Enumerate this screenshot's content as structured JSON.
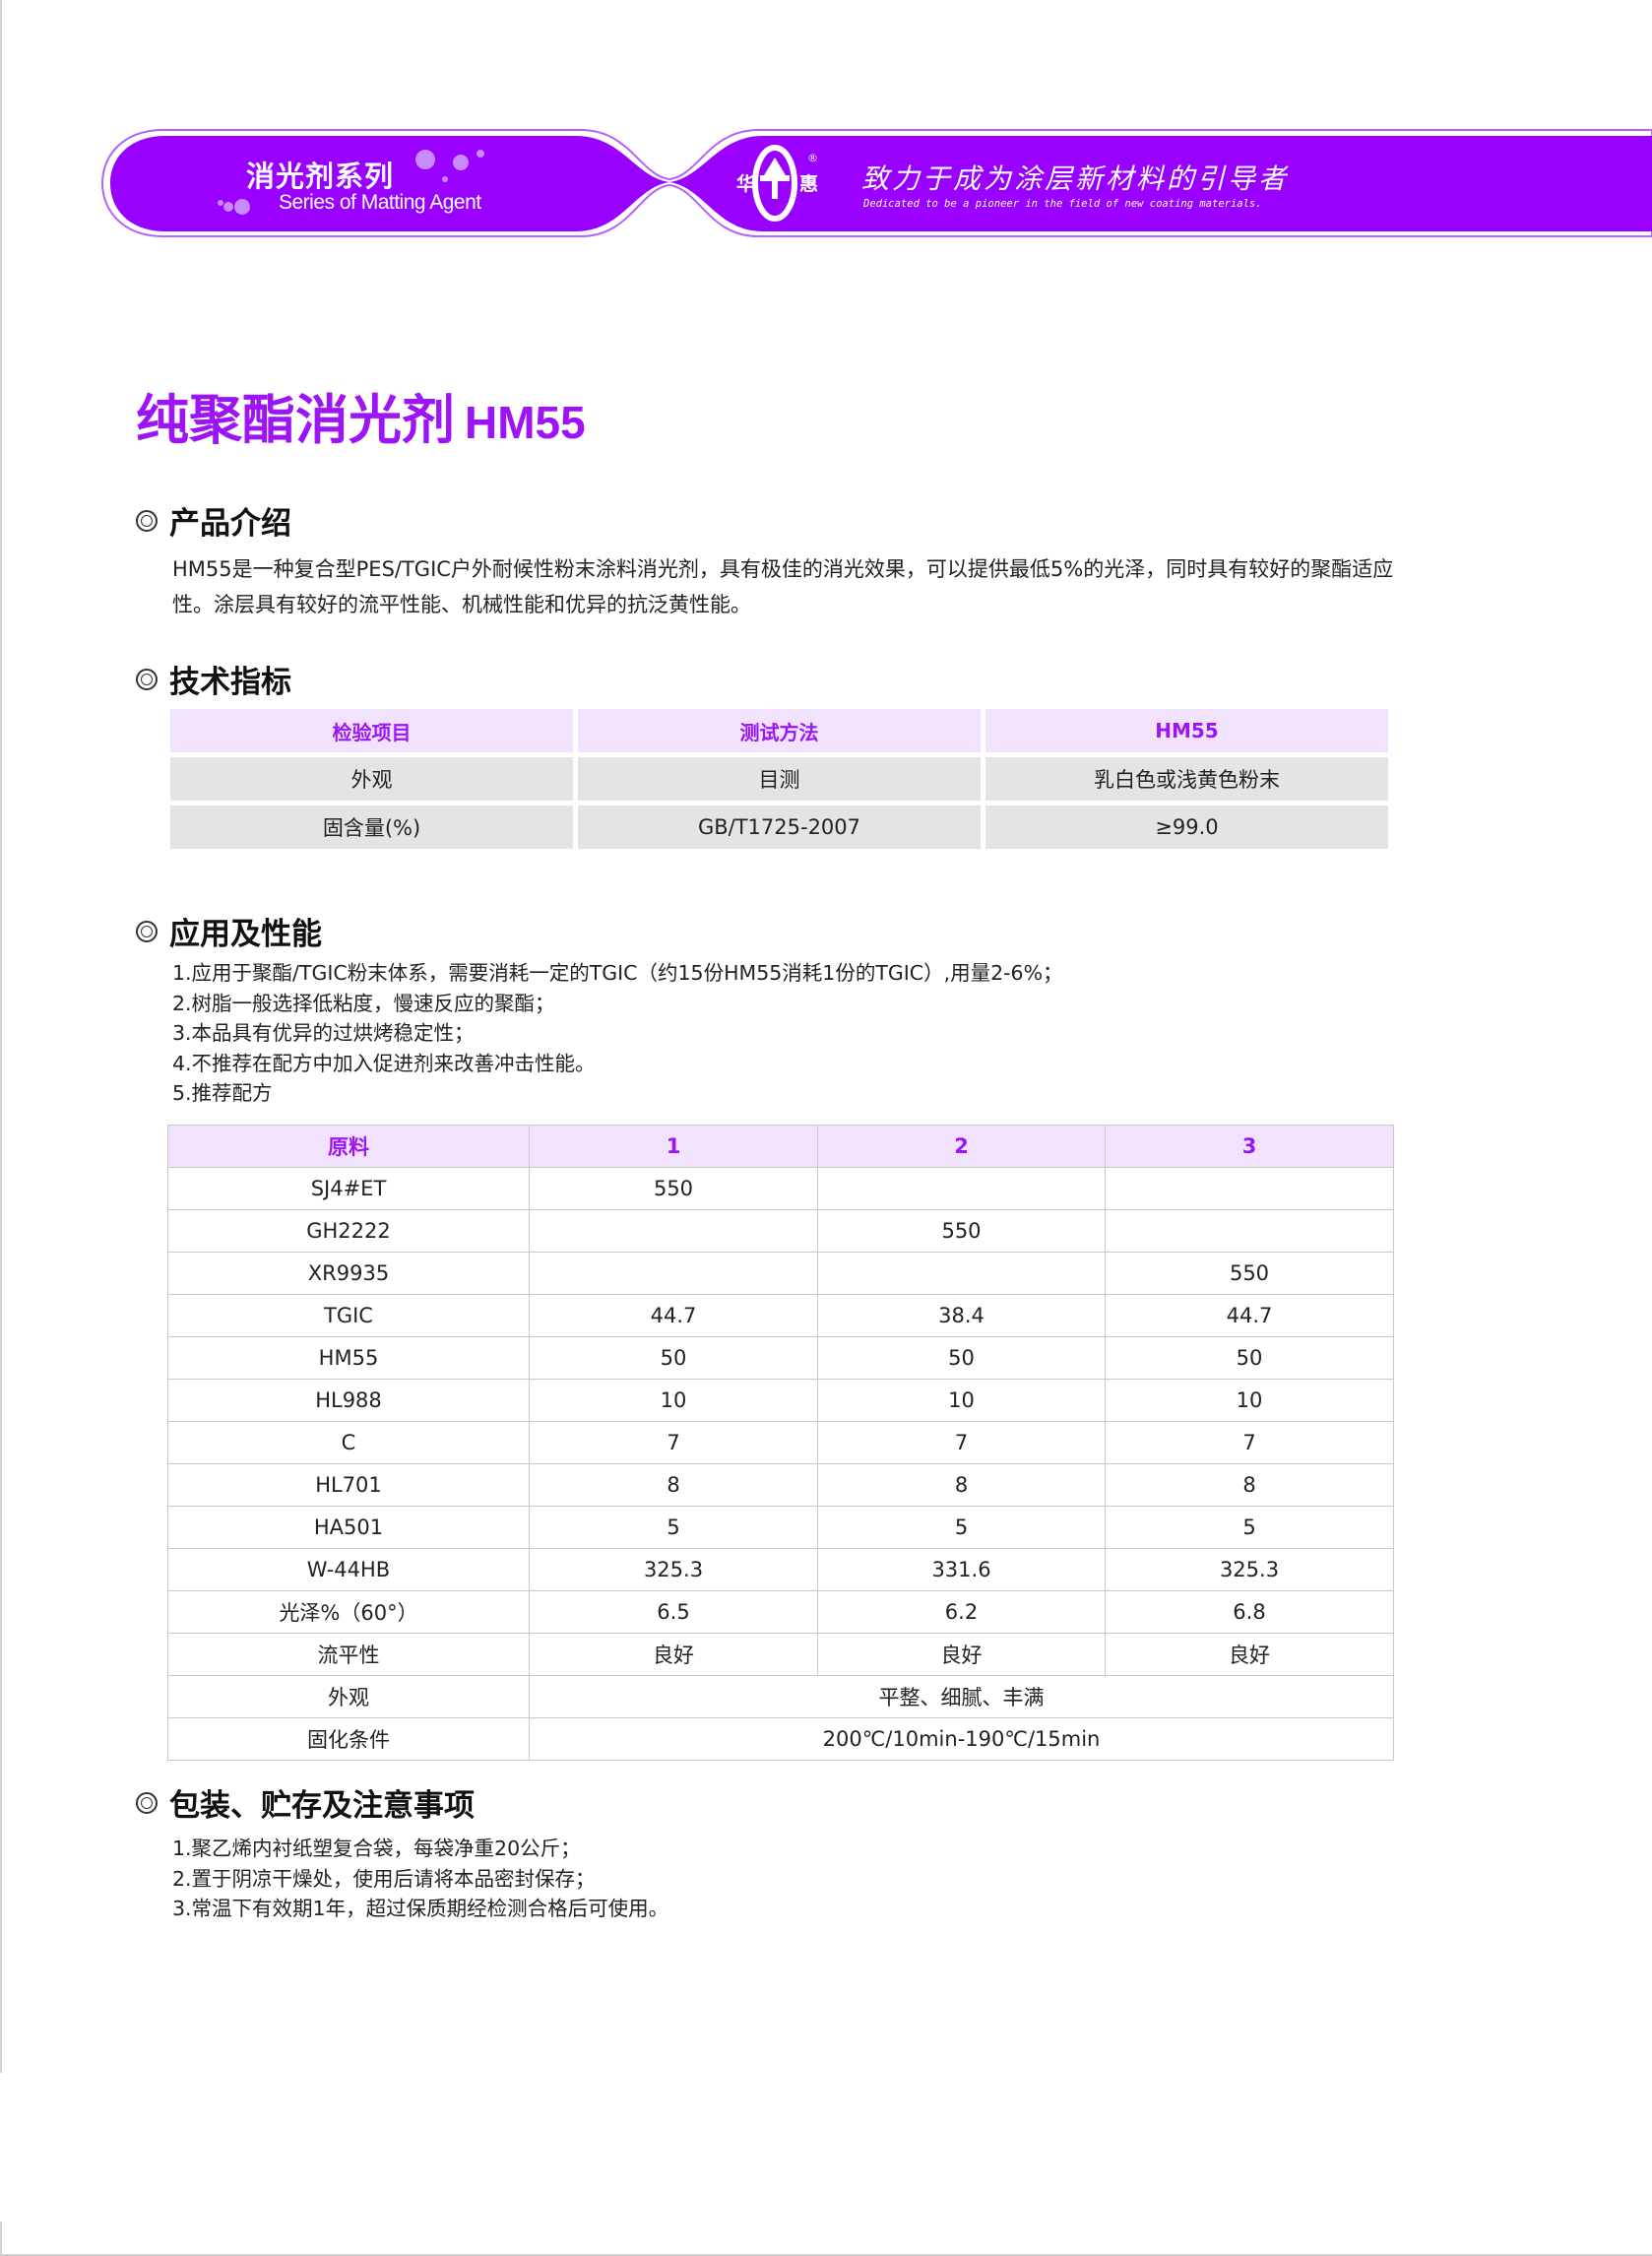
{
  "header": {
    "series_cn": "消光剂系列",
    "series_en": "Series of Matting Agent",
    "logo_left_char": "华",
    "logo_right_char": "惠",
    "logo_registered": "®",
    "slogan_cn": "致力于成为涂层新材料的引导者",
    "slogan_en": "Dedicated to be a pioneer in the field of new coating materials.",
    "brand_color": "#9900ff"
  },
  "title": {
    "name": "纯聚酯消光剂",
    "model": "HM55"
  },
  "sections": {
    "intro": {
      "heading": "产品介绍",
      "text": "HM55是一种复合型PES/TGIC户外耐候性粉末涂料消光剂，具有极佳的消光效果，可以提供最低5%的光泽，同时具有较好的聚酯适应性。涂层具有较好的流平性能、机械性能和优异的抗泛黄性能。"
    },
    "specs": {
      "heading": "技术指标",
      "headers": [
        "检验项目",
        "测试方法",
        "HM55"
      ],
      "rows": [
        [
          "外观",
          "目测",
          "乳白色或浅黄色粉末"
        ],
        [
          "固含量(%)",
          "GB/T1725-2007",
          "≥99.0"
        ]
      ]
    },
    "application": {
      "heading": "应用及性能",
      "items": [
        "1.应用于聚酯/TGIC粉末体系，需要消耗一定的TGIC（约15份HM55消耗1份的TGIC）,用量2-6%；",
        "2.树脂一般选择低粘度，慢速反应的聚酯；",
        "3.本品具有优异的过烘烤稳定性；",
        "4.不推荐在配方中加入促进剂来改善冲击性能。",
        "5.推荐配方"
      ],
      "formula": {
        "headers": [
          "原料",
          "1",
          "2",
          "3"
        ],
        "rows": [
          [
            "SJ4#ET",
            "550",
            "",
            ""
          ],
          [
            "GH2222",
            "",
            "550",
            ""
          ],
          [
            "XR9935",
            "",
            "",
            "550"
          ],
          [
            "TGIC",
            "44.7",
            "38.4",
            "44.7"
          ],
          [
            "HM55",
            "50",
            "50",
            "50"
          ],
          [
            "HL988",
            "10",
            "10",
            "10"
          ],
          [
            "C",
            "7",
            "7",
            "7"
          ],
          [
            "HL701",
            "8",
            "8",
            "8"
          ],
          [
            "HA501",
            "5",
            "5",
            "5"
          ],
          [
            "W-44HB",
            "325.3",
            "331.6",
            "325.3"
          ],
          [
            "光泽%（60°）",
            "6.5",
            "6.2",
            "6.8"
          ],
          [
            "流平性",
            "良好",
            "良好",
            "良好"
          ]
        ],
        "merged_rows": [
          [
            "外观",
            "平整、细腻、丰满"
          ],
          [
            "固化条件",
            "200℃/10min-190℃/15min"
          ]
        ]
      }
    },
    "packaging": {
      "heading": "包装、贮存及注意事项",
      "items": [
        "1.聚乙烯内衬纸塑复合袋，每袋净重20公斤；",
        "2.置于阴凉干燥处，使用后请将本品密封保存；",
        "3.常温下有效期1年，超过保质期经检测合格后可使用。"
      ]
    }
  }
}
